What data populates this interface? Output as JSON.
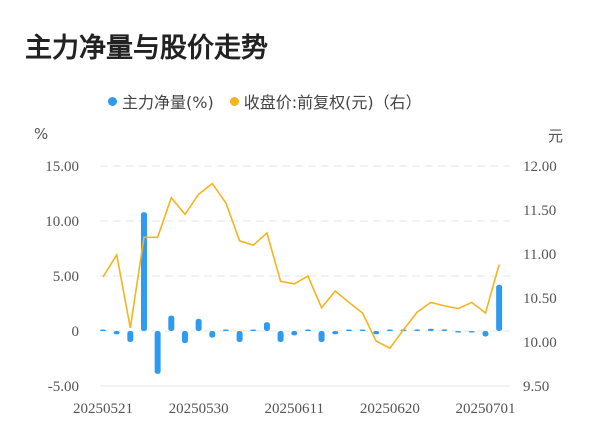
{
  "title": "主力净量与股价走势",
  "legend": [
    {
      "label": "主力净量(%)",
      "color": "#2f9bf0"
    },
    {
      "label": "收盘价:前复权(元)（右）",
      "color": "#f5b41e"
    }
  ],
  "left_axis": {
    "unit": "%",
    "ticks": [
      "15.00",
      "10.00",
      "5.00",
      "0",
      "-5.00"
    ]
  },
  "right_axis": {
    "unit": "元",
    "ticks": [
      "12.00",
      "11.50",
      "11.00",
      "10.50",
      "10.00",
      "9.50"
    ]
  },
  "x_axis": {
    "labels": [
      "20250521",
      "20250530",
      "20250611",
      "20250620",
      "20250701"
    ]
  },
  "colors": {
    "bar": "#2f9bf0",
    "line": "#f5b41e",
    "grid": "#e6e6e6",
    "axis_text": "#555555"
  },
  "chart_data": {
    "type": "bar+line",
    "title": "主力净量与股价走势",
    "xlabel": "",
    "ylabel": "%",
    "ylabel_right": "元",
    "ylim": [
      -5,
      15
    ],
    "ylim_right": [
      9.5,
      12.0
    ],
    "grid": true,
    "legend_position": "top",
    "x_tick_labels": [
      "20250521",
      "20250530",
      "20250611",
      "20250620",
      "20250701"
    ],
    "x_tick_indices": [
      0,
      7,
      14,
      21,
      28
    ],
    "num_points": 30,
    "series": [
      {
        "name": "主力净量(%)",
        "type": "bar",
        "axis": "left",
        "values": [
          0.05,
          -0.3,
          -1.0,
          10.8,
          -3.9,
          1.4,
          -1.1,
          1.1,
          -0.6,
          0.05,
          -1.0,
          0.1,
          0.8,
          -1.0,
          -0.4,
          0.1,
          -1.0,
          -0.3,
          0.05,
          0.05,
          -0.3,
          0.05,
          0.05,
          0.15,
          0.2,
          0.15,
          -0.1,
          -0.05,
          -0.5,
          4.2
        ]
      },
      {
        "name": "收盘价:前复权(元)（右）",
        "type": "line",
        "axis": "right",
        "values": [
          10.74,
          10.99,
          10.16,
          11.19,
          11.19,
          11.64,
          11.45,
          11.68,
          11.8,
          11.58,
          11.15,
          11.1,
          11.24,
          10.69,
          10.66,
          10.75,
          10.39,
          10.58,
          10.45,
          10.33,
          10.01,
          9.93,
          10.14,
          10.34,
          10.45,
          10.41,
          10.38,
          10.45,
          10.33,
          10.88
        ]
      }
    ]
  }
}
